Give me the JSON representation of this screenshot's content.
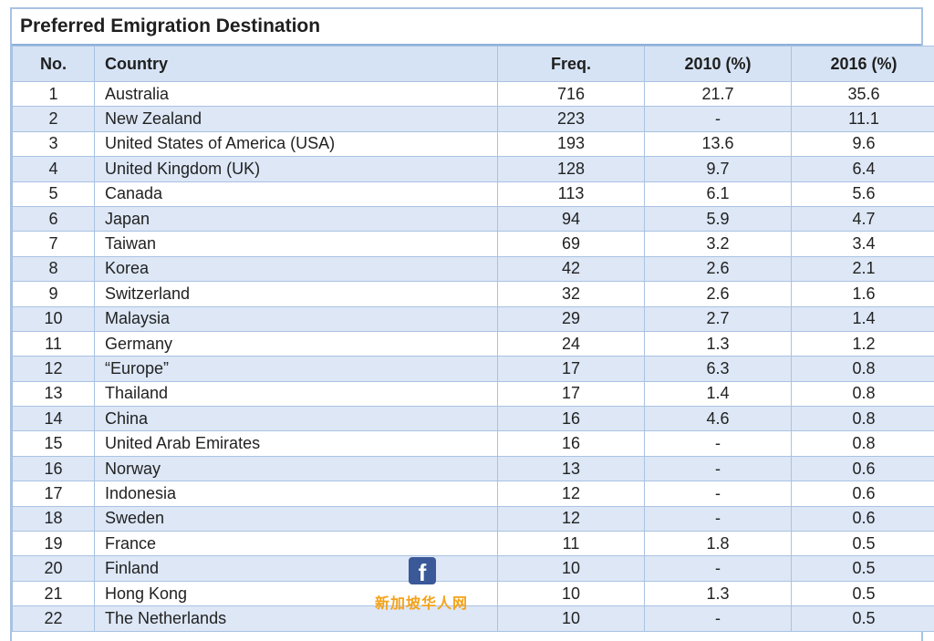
{
  "table": {
    "title": "Preferred Emigration Destination",
    "headers": {
      "no": "No.",
      "country": "Country",
      "freq": "Freq.",
      "y2010": "2010 (%)",
      "y2016": "2016 (%)"
    },
    "rows": [
      {
        "no": "1",
        "country": "Australia",
        "freq": "716",
        "y2010": "21.7",
        "y2016": "35.6"
      },
      {
        "no": "2",
        "country": "New Zealand",
        "freq": "223",
        "y2010": "-",
        "y2016": "11.1"
      },
      {
        "no": "3",
        "country": "United States of America (USA)",
        "freq": "193",
        "y2010": "13.6",
        "y2016": "9.6"
      },
      {
        "no": "4",
        "country": "United Kingdom (UK)",
        "freq": "128",
        "y2010": "9.7",
        "y2016": "6.4"
      },
      {
        "no": "5",
        "country": "Canada",
        "freq": "113",
        "y2010": "6.1",
        "y2016": "5.6"
      },
      {
        "no": "6",
        "country": "Japan",
        "freq": "94",
        "y2010": "5.9",
        "y2016": "4.7"
      },
      {
        "no": "7",
        "country": "Taiwan",
        "freq": "69",
        "y2010": "3.2",
        "y2016": "3.4"
      },
      {
        "no": "8",
        "country": "Korea",
        "freq": "42",
        "y2010": "2.6",
        "y2016": "2.1"
      },
      {
        "no": "9",
        "country": "Switzerland",
        "freq": "32",
        "y2010": "2.6",
        "y2016": "1.6"
      },
      {
        "no": "10",
        "country": "Malaysia",
        "freq": "29",
        "y2010": "2.7",
        "y2016": "1.4"
      },
      {
        "no": "11",
        "country": "Germany",
        "freq": "24",
        "y2010": "1.3",
        "y2016": "1.2"
      },
      {
        "no": "12",
        "country": "“Europe”",
        "freq": "17",
        "y2010": "6.3",
        "y2016": "0.8"
      },
      {
        "no": "13",
        "country": "Thailand",
        "freq": "17",
        "y2010": "1.4",
        "y2016": "0.8"
      },
      {
        "no": "14",
        "country": "China",
        "freq": "16",
        "y2010": "4.6",
        "y2016": "0.8"
      },
      {
        "no": "15",
        "country": "United Arab Emirates",
        "freq": "16",
        "y2010": "-",
        "y2016": "0.8"
      },
      {
        "no": "16",
        "country": "Norway",
        "freq": "13",
        "y2010": "-",
        "y2016": "0.6"
      },
      {
        "no": "17",
        "country": "Indonesia",
        "freq": "12",
        "y2010": "-",
        "y2016": "0.6"
      },
      {
        "no": "18",
        "country": "Sweden",
        "freq": "12",
        "y2010": "-",
        "y2016": "0.6"
      },
      {
        "no": "19",
        "country": "France",
        "freq": "11",
        "y2010": "1.8",
        "y2016": "0.5"
      },
      {
        "no": "20",
        "country": "Finland",
        "freq": "10",
        "y2010": "-",
        "y2016": "0.5"
      },
      {
        "no": "21",
        "country": "Hong Kong",
        "freq": "10",
        "y2010": "1.3",
        "y2016": "0.5"
      },
      {
        "no": "22",
        "country": "The Netherlands",
        "freq": "10",
        "y2010": "-",
        "y2016": "0.5"
      }
    ]
  },
  "watermark": {
    "icon": "facebook-icon",
    "icon_glyph": "f",
    "text": "新加坡华人网",
    "icon_color": "#3b5998",
    "text_color": "#f4a21a"
  },
  "colors": {
    "header_bg": "#d6e3f4",
    "stripe_bg": "#dde7f6",
    "border": "#a9c2e2"
  }
}
